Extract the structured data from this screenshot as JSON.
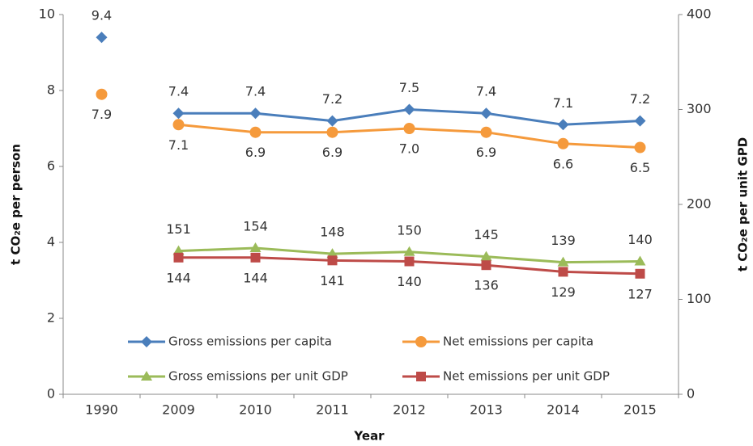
{
  "chart_data": {
    "type": "line",
    "categories": [
      "1990",
      "2009",
      "2010",
      "2011",
      "2012",
      "2013",
      "2014",
      "2015"
    ],
    "x_label": "Year",
    "y_label": "t CO₂e per person",
    "y2_label": "t CO₂e per unit GPD",
    "ylim": [
      0,
      10
    ],
    "yticks": [
      0,
      2,
      4,
      6,
      8,
      10
    ],
    "y2lim": [
      0,
      400
    ],
    "y2ticks": [
      0,
      100,
      200,
      300,
      400
    ],
    "first_point_connected": false,
    "series": [
      {
        "name": "Gross emissions per capita",
        "color": "#4a7ebb",
        "marker": "diamond",
        "label_position": "above",
        "values": [
          9.4,
          7.4,
          7.4,
          7.2,
          7.5,
          7.4,
          7.1,
          7.2
        ]
      },
      {
        "name": "Net emissions per capita",
        "color": "#f59a3c",
        "marker": "circle",
        "label_position": "below",
        "values": [
          7.9,
          7.1,
          6.9,
          6.9,
          7.0,
          6.9,
          6.6,
          6.5
        ],
        "value_labels": [
          "7.9",
          "7.1",
          "6.9",
          "6.9",
          "7.0",
          "6.9",
          "6.6",
          "6.5"
        ]
      },
      {
        "name": "Gross emissions per unit GDP",
        "color": "#9bbb59",
        "marker": "triangle",
        "label_position": "above",
        "axis": "y2",
        "values": [
          null,
          151,
          154,
          148,
          150,
          145,
          139,
          140
        ]
      },
      {
        "name": "Net emissions per unit GDP",
        "color": "#be4b48",
        "marker": "square",
        "label_position": "below",
        "axis": "y2",
        "values": [
          null,
          144,
          144,
          141,
          140,
          136,
          129,
          127
        ]
      }
    ]
  }
}
